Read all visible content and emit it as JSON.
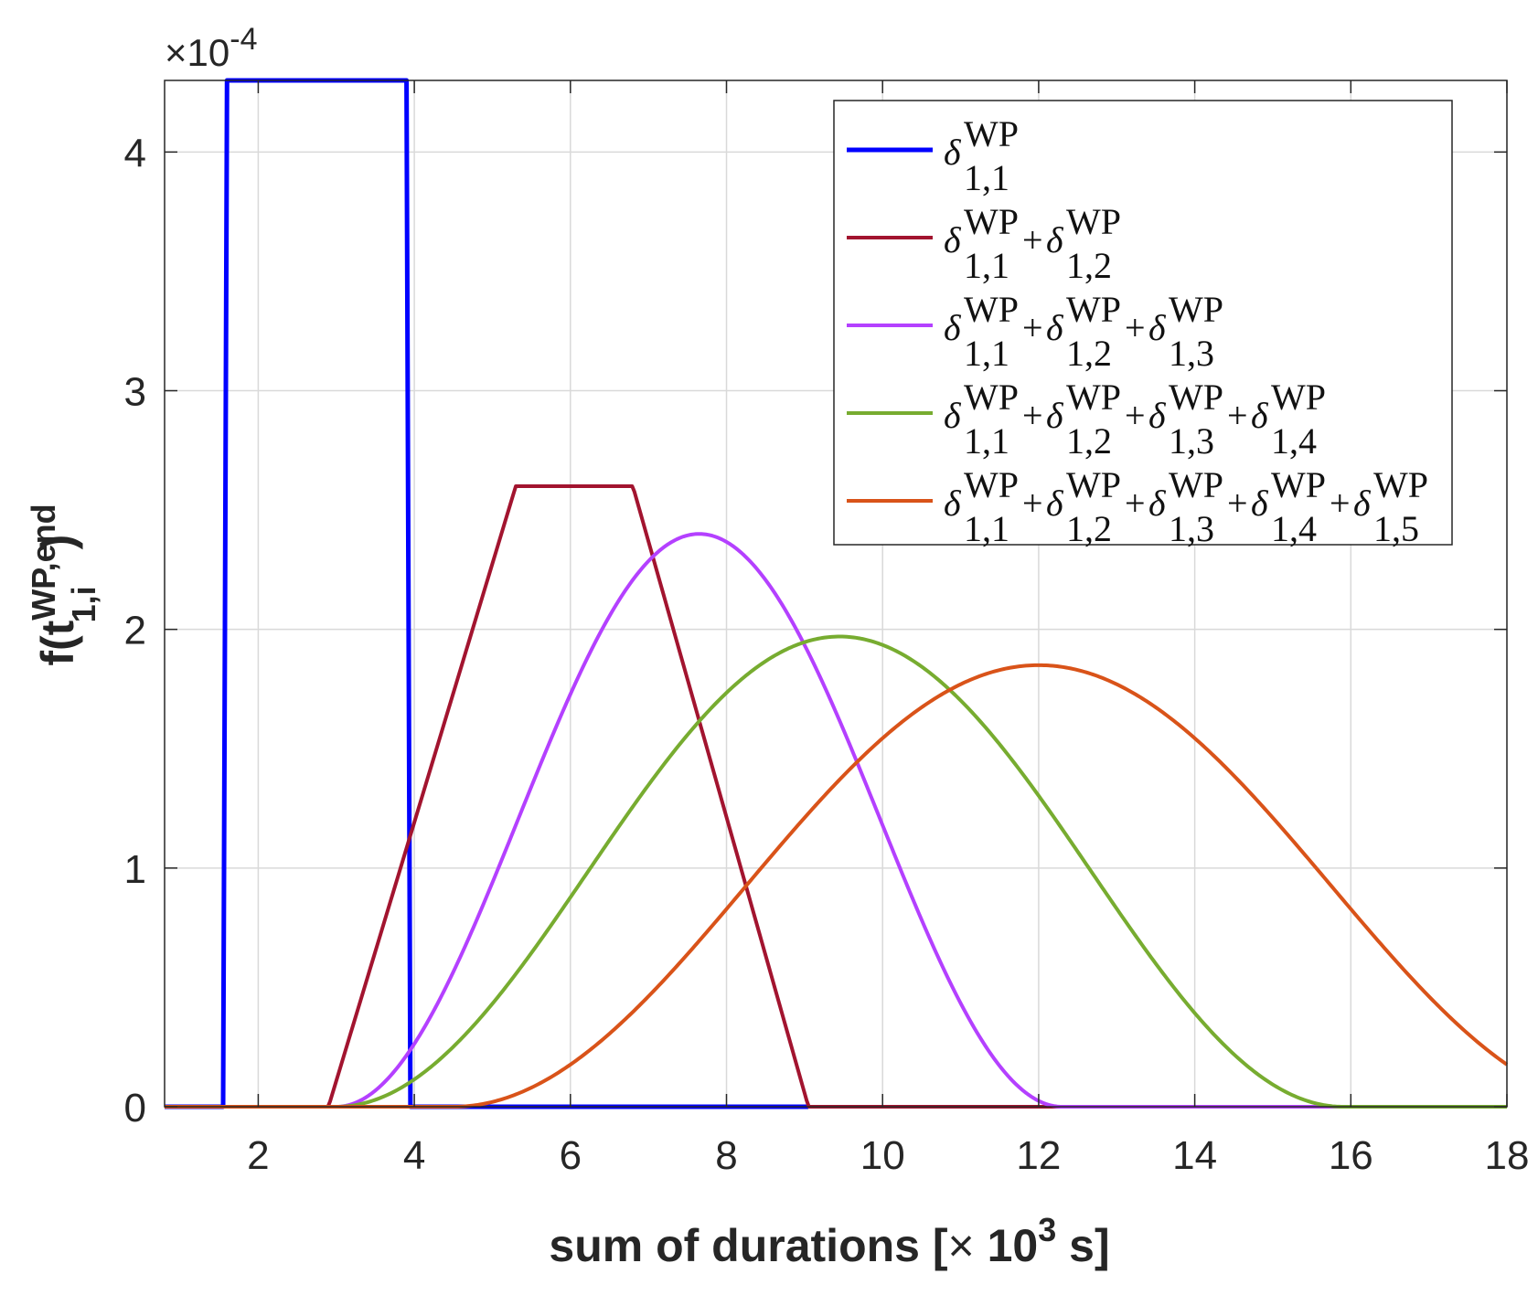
{
  "chart_data": {
    "type": "line",
    "title": "",
    "xlabel": "sum of durations [× 10³ s]",
    "xlabel_parts": {
      "main": "sum of durations [",
      "times": "×",
      "base": " 10",
      "exp": "3",
      "unit": " s]"
    },
    "ylabel": "f(t_{1,i}^{WP,end})",
    "ylabel_parts": {
      "prefix": "f(t",
      "sup": "WP,end",
      "sub": "1,i",
      "suffix": ")"
    },
    "y_exponent": {
      "times": "×",
      "base": "10",
      "exp": "-4"
    },
    "xlim": [
      0.8,
      18
    ],
    "ylim": [
      0,
      4.3
    ],
    "xticks": [
      2,
      4,
      6,
      8,
      10,
      12,
      14,
      16,
      18
    ],
    "yticks": [
      0,
      1,
      2,
      3,
      4
    ],
    "grid": true,
    "legend_position": "top-right",
    "series": [
      {
        "name": "δ_{1,1}^{WP}",
        "kind": "uniform",
        "params": {
          "a": 1.55,
          "b": 3.9,
          "peak": 4.3
        },
        "color": "#0000ff",
        "legend": [
          {
            "delta": "δ",
            "sup": "WP",
            "sub": "1,1"
          }
        ]
      },
      {
        "name": "δ_{1,1}^{WP}+δ_{1,2}^{WP}",
        "kind": "trapezoid",
        "params": {
          "a": 2.9,
          "b": 5.3,
          "c": 6.8,
          "d": 9.05,
          "peak": 2.6
        },
        "color": "#a2142f",
        "legend": [
          {
            "delta": "δ",
            "sup": "WP",
            "sub": "1,1"
          },
          {
            "delta": "δ",
            "sup": "WP",
            "sub": "1,2"
          }
        ]
      },
      {
        "name": "δ_{1,1}^{WP}+δ_{1,2}^{WP}+δ_{1,3}^{WP}",
        "kind": "bell",
        "params": {
          "a": 3.0,
          "m": 7.65,
          "b": 12.3,
          "peak": 2.4
        },
        "color": "#b440ff",
        "legend": [
          {
            "delta": "δ",
            "sup": "WP",
            "sub": "1,1"
          },
          {
            "delta": "δ",
            "sup": "WP",
            "sub": "1,2"
          },
          {
            "delta": "δ",
            "sup": "WP",
            "sub": "1,3"
          }
        ]
      },
      {
        "name": "δ_{1,1}^{WP}+δ_{1,2}^{WP}+δ_{1,3}^{WP}+δ_{1,4}^{WP}",
        "kind": "bell",
        "params": {
          "a": 3.0,
          "m": 9.45,
          "b": 15.9,
          "peak": 1.97
        },
        "color": "#77ac30",
        "legend": [
          {
            "delta": "δ",
            "sup": "WP",
            "sub": "1,1"
          },
          {
            "delta": "δ",
            "sup": "WP",
            "sub": "1,2"
          },
          {
            "delta": "δ",
            "sup": "WP",
            "sub": "1,3"
          },
          {
            "delta": "δ",
            "sup": "WP",
            "sub": "1,4"
          }
        ]
      },
      {
        "name": "δ_{1,1}^{WP}+δ_{1,2}^{WP}+δ_{1,3}^{WP}+δ_{1,4}^{WP}+δ_{1,5}^{WP}",
        "kind": "bell",
        "params": {
          "a": 4.5,
          "m": 12.0,
          "b": 19.5,
          "peak": 1.85
        },
        "color": "#d95319",
        "legend": [
          {
            "delta": "δ",
            "sup": "WP",
            "sub": "1,1"
          },
          {
            "delta": "δ",
            "sup": "WP",
            "sub": "1,2"
          },
          {
            "delta": "δ",
            "sup": "WP",
            "sub": "1,3"
          },
          {
            "delta": "δ",
            "sup": "WP",
            "sub": "1,4"
          },
          {
            "delta": "δ",
            "sup": "WP",
            "sub": "1,5"
          }
        ]
      }
    ],
    "legend_plus": "+"
  }
}
